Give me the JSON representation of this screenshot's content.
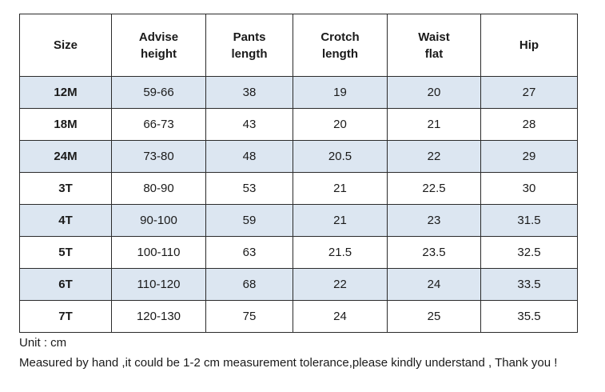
{
  "table": {
    "headers": [
      "Size",
      "Advise\nheight",
      "Pants\nlength",
      "Crotch\nlength",
      "Waist\nflat",
      "Hip"
    ],
    "rows": [
      [
        "12M",
        "59-66",
        "38",
        "19",
        "20",
        "27"
      ],
      [
        "18M",
        "66-73",
        "43",
        "20",
        "21",
        "28"
      ],
      [
        "24M",
        "73-80",
        "48",
        "20.5",
        "22",
        "29"
      ],
      [
        "3T",
        "80-90",
        "53",
        "21",
        "22.5",
        "30"
      ],
      [
        "4T",
        "90-100",
        "59",
        "21",
        "23",
        "31.5"
      ],
      [
        "5T",
        "100-110",
        "63",
        "21.5",
        "23.5",
        "32.5"
      ],
      [
        "6T",
        "110-120",
        "68",
        "22",
        "24",
        "33.5"
      ],
      [
        "7T",
        "120-130",
        "75",
        "24",
        "25",
        "35.5"
      ]
    ]
  },
  "notes": {
    "unit": "Unit : cm",
    "tolerance": "Measured by hand ,it could be 1-2 cm measurement tolerance,please kindly understand , Thank you !"
  },
  "colors": {
    "shaded_row": "#dce6f1",
    "border": "#2b2b2b"
  }
}
